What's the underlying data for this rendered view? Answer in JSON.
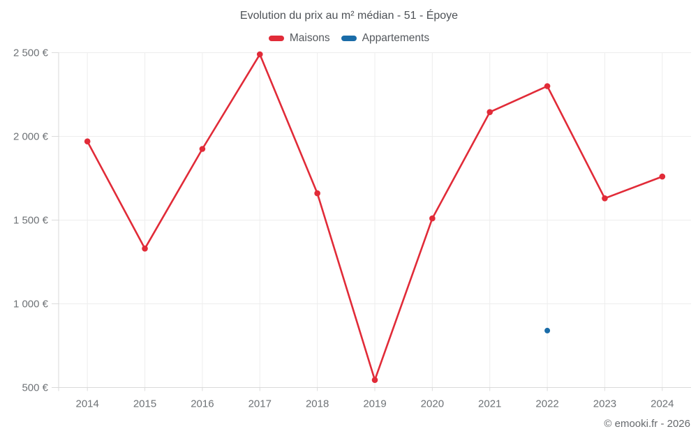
{
  "chart_data": {
    "type": "line",
    "title": "Evolution du prix au m² médian - 51 - Époye",
    "x": [
      "2014",
      "2015",
      "2016",
      "2017",
      "2018",
      "2019",
      "2020",
      "2021",
      "2022",
      "2023",
      "2024"
    ],
    "series": [
      {
        "name": "Maisons",
        "color": "#e12b38",
        "point_radius": 4.3,
        "values": [
          1970,
          1330,
          1925,
          2490,
          1660,
          545,
          1510,
          2145,
          2300,
          1630,
          1760
        ]
      },
      {
        "name": "Appartements",
        "color": "#1a6ca8",
        "point_radius": 4,
        "values": [
          null,
          null,
          null,
          null,
          null,
          null,
          null,
          null,
          840,
          null,
          null
        ]
      }
    ],
    "xlabel": "",
    "ylabel": "",
    "ylim": [
      500,
      2500
    ],
    "ytick_step": 500,
    "ytick_labels": [
      "500 €",
      "1 000 €",
      "1 500 €",
      "2 000 €",
      "2 500 €"
    ],
    "grid": true,
    "legend_position": "top"
  },
  "footer": {
    "copyright": "© emooki.fr - 2026"
  }
}
